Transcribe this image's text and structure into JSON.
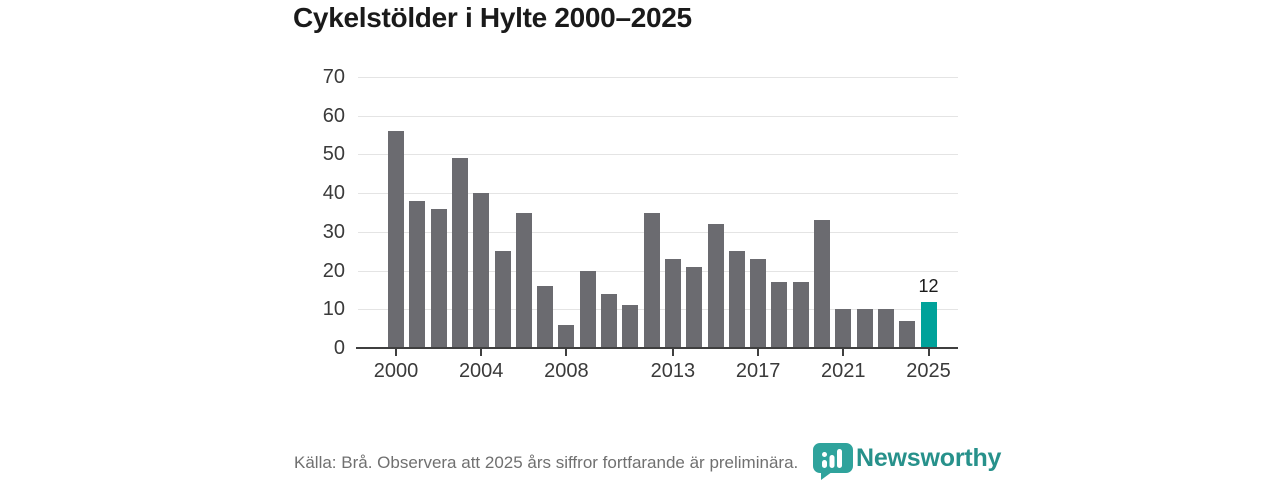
{
  "page": {
    "title": "Cykelstölder i Hylte 2000–2025",
    "footer_note": "Källa: Brå. Observera att 2025 års siffror fortfarande är preliminära.",
    "brand": {
      "name": "Newsworthy",
      "icon": "newsworthy-bubble-chart-icon"
    }
  },
  "colors": {
    "bar_gray": "#6b6b70",
    "highlight_teal": "#00a29a",
    "gridline": "#e4e4e4",
    "axis_line": "#3f3f3f",
    "title_text": "#1a1a1a",
    "axis_text": "#3a3a3a",
    "footer_text": "#707070",
    "brand_teal": "#27918b",
    "brand_icon_teal": "#2fa39c"
  },
  "chart_data": {
    "type": "bar",
    "title": "Cykelstölder i Hylte 2000–2025",
    "xlabel": "",
    "ylabel": "",
    "categories": [
      2000,
      2001,
      2002,
      2003,
      2004,
      2005,
      2006,
      2007,
      2008,
      2009,
      2010,
      2011,
      2012,
      2013,
      2014,
      2015,
      2016,
      2017,
      2018,
      2019,
      2020,
      2021,
      2022,
      2023,
      2024,
      2025
    ],
    "values": [
      56,
      38,
      36,
      49,
      40,
      25,
      35,
      16,
      6,
      20,
      14,
      11,
      35,
      23,
      21,
      32,
      25,
      23,
      17,
      17,
      33,
      10,
      10,
      10,
      7,
      12
    ],
    "ylim": [
      0,
      70
    ],
    "yticks": [
      0,
      10,
      20,
      30,
      40,
      50,
      60,
      70
    ],
    "xticks": [
      2000,
      2004,
      2008,
      2013,
      2017,
      2021,
      2025
    ],
    "grid": "horizontal",
    "legend": "none",
    "bar_color": "#6b6b70",
    "highlight": {
      "category": 2025,
      "value": 12,
      "label": "12",
      "color": "#00a29a"
    }
  }
}
